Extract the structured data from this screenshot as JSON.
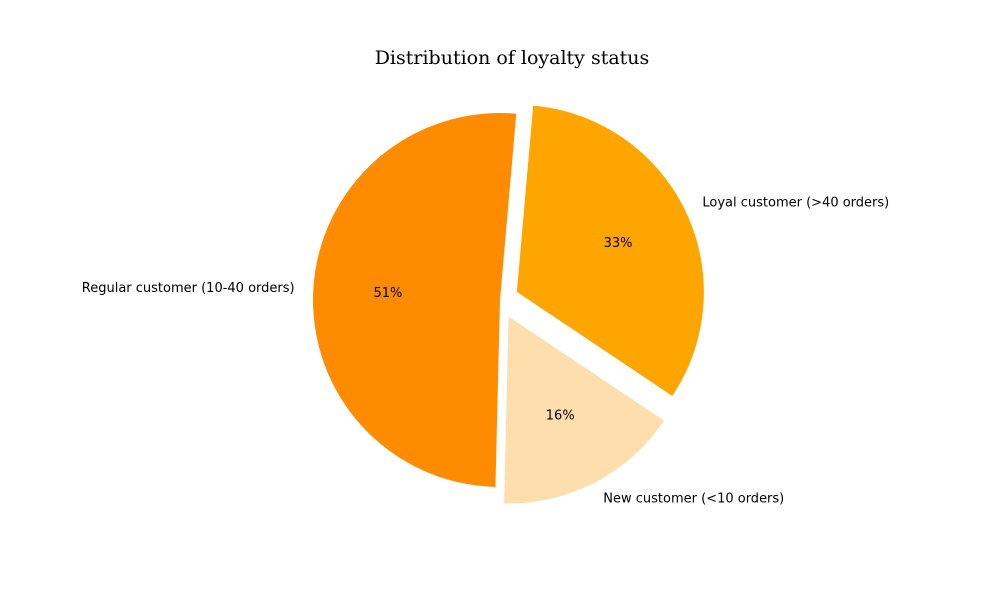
{
  "chart_data": {
    "type": "pie",
    "title": "Distribution of loyalty status",
    "slices": [
      {
        "label": "Loyal customer (>40 orders)",
        "value": 33,
        "pct_label": "33%",
        "color": "#FFA500",
        "exploded": true
      },
      {
        "label": "New customer (<10 orders)",
        "value": 16,
        "pct_label": "16%",
        "color": "#FFDEAD",
        "exploded": true
      },
      {
        "label": "Regular customer (10-40 orders)",
        "value": 51,
        "pct_label": "51%",
        "color": "#FF8C00",
        "exploded": false
      }
    ],
    "start_angle_deg": 85,
    "direction": "clockwise",
    "legend": "none"
  }
}
